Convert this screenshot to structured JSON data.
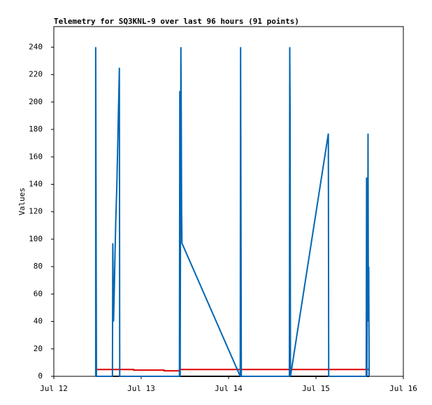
{
  "chart_data": {
    "type": "line",
    "title": "Telemetry for SQ3KNL-9 over last 96 hours (91 points)",
    "y_label": "Values",
    "xlim": [
      0,
      96
    ],
    "xticks": [
      {
        "value": 0,
        "label": "Jul 12"
      },
      {
        "value": 24,
        "label": "Jul 13"
      },
      {
        "value": 48,
        "label": "Jul 14"
      },
      {
        "value": 72,
        "label": "Jul 15"
      },
      {
        "value": 96,
        "label": "Jul 16"
      }
    ],
    "ylim": [
      0,
      255
    ],
    "yticks": [
      0,
      20,
      40,
      60,
      80,
      100,
      120,
      140,
      160,
      180,
      200,
      220,
      240
    ],
    "grid": false,
    "series": [
      {
        "color": "#0066b3",
        "x": [
          11.5,
          11.5,
          11.6,
          11.7,
          16.1,
          16.2,
          16.4,
          16.6,
          16.8,
          17.0,
          17.3,
          17.5,
          17.7,
          17.9,
          18.0,
          18.1,
          34.5,
          34.6,
          34.7,
          34.9,
          35.0,
          35.1,
          35.2,
          51.2,
          51.3,
          51.4,
          51.5,
          64.7,
          64.8,
          64.9,
          65.0,
          75.4,
          75.5,
          85.8,
          85.9,
          86.0,
          86.1,
          86.2,
          86.3,
          86.4,
          86.5,
          86.6
        ],
        "values": [
          0,
          240,
          120,
          0,
          0,
          97,
          40,
          62,
          88,
          112,
          138,
          162,
          188,
          212,
          225,
          0,
          0,
          208,
          0,
          240,
          192,
          120,
          97,
          0,
          240,
          120,
          0,
          0,
          240,
          192,
          0,
          177,
          0,
          0,
          145,
          0,
          108,
          60,
          177,
          40,
          80,
          0
        ]
      },
      {
        "color": "#dd0000",
        "x": [
          11.5,
          21.9,
          21.9,
          30.3,
          30.3,
          34.5,
          34.5,
          86.6
        ],
        "values": [
          5,
          5,
          4.5,
          4.5,
          4,
          4,
          5,
          5
        ]
      },
      {
        "color": "#000000",
        "x": [
          11.5,
          86.6
        ],
        "values": [
          0,
          0
        ]
      }
    ]
  }
}
